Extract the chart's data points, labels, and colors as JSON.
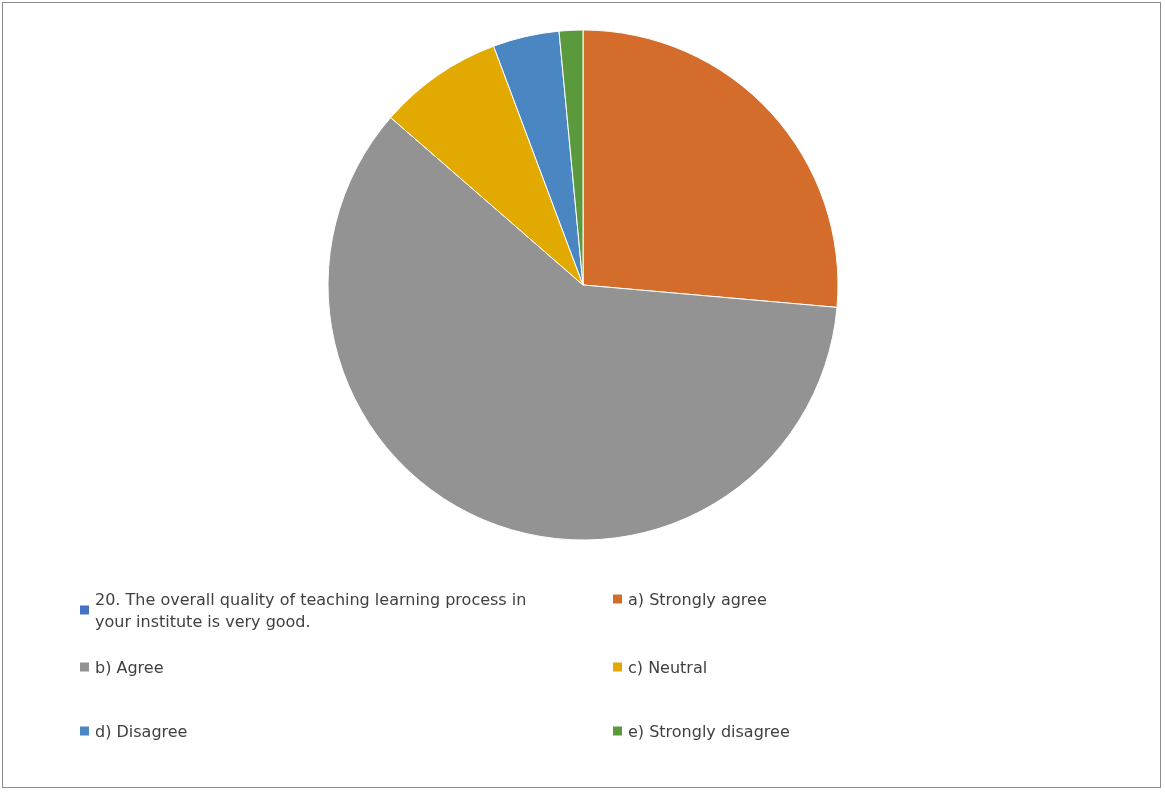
{
  "chart_data": {
    "type": "pie",
    "categories": [
      "20. The overall quality of teaching learning process in your institute is very good.",
      "a) Strongly agree",
      "b) Agree",
      "c) Neutral",
      "d) Disagree",
      "e) Strongly disagree"
    ],
    "values": [
      0,
      26.4,
      60,
      7.9,
      4.2,
      1.5
    ],
    "colors": [
      "#4472c4",
      "#d46d2b",
      "#939393",
      "#e2a900",
      "#4a86c2",
      "#5b9a3c"
    ],
    "legend": "bottom"
  }
}
